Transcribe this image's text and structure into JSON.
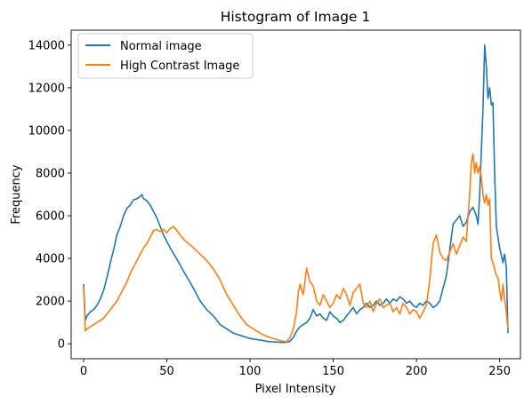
{
  "chart_data": {
    "type": "line",
    "title": "Histogram of Image 1",
    "xlabel": "Pixel Intensity",
    "ylabel": "Frequency",
    "xlim": [
      -7.5,
      262.5
    ],
    "ylim": [
      -700,
      14700
    ],
    "xticks": [
      0,
      50,
      100,
      150,
      200,
      250
    ],
    "yticks": [
      0,
      2000,
      4000,
      6000,
      8000,
      10000,
      12000,
      14000
    ],
    "grid": false,
    "legend_position": "upper-left",
    "series": [
      {
        "name": "Normal image",
        "color": "#1f77b4",
        "x": [
          0,
          1,
          2,
          4,
          6,
          8,
          10,
          12,
          14,
          16,
          18,
          20,
          22,
          24,
          26,
          28,
          30,
          32,
          34,
          35,
          36,
          38,
          40,
          42,
          44,
          46,
          48,
          50,
          52,
          55,
          58,
          60,
          63,
          66,
          70,
          74,
          78,
          82,
          86,
          90,
          94,
          98,
          100,
          104,
          108,
          110,
          112,
          114,
          116,
          118,
          120,
          122,
          124,
          126,
          128,
          130,
          132,
          134,
          136,
          138,
          140,
          142,
          144,
          146,
          148,
          150,
          152,
          154,
          156,
          158,
          160,
          162,
          164,
          166,
          168,
          170,
          172,
          174,
          176,
          178,
          180,
          182,
          184,
          186,
          188,
          190,
          192,
          194,
          196,
          198,
          200,
          202,
          204,
          206,
          208,
          210,
          212,
          214,
          216,
          218,
          220,
          222,
          224,
          226,
          228,
          230,
          232,
          234,
          236,
          237,
          238,
          239,
          240,
          241,
          242,
          243,
          244,
          245,
          246,
          247,
          248,
          250,
          252,
          253,
          254,
          255
        ],
        "y": [
          2800,
          1100,
          1300,
          1500,
          1600,
          1800,
          2100,
          2500,
          3100,
          3800,
          4400,
          5100,
          5500,
          6000,
          6350,
          6500,
          6750,
          6800,
          6900,
          7000,
          6800,
          6700,
          6500,
          6200,
          5900,
          5500,
          5100,
          4800,
          4500,
          4100,
          3700,
          3400,
          3000,
          2600,
          2000,
          1600,
          1300,
          900,
          700,
          500,
          400,
          300,
          250,
          200,
          150,
          120,
          100,
          90,
          80,
          70,
          60,
          80,
          120,
          300,
          600,
          800,
          900,
          1000,
          1200,
          1600,
          1300,
          1400,
          1200,
          1100,
          1500,
          1300,
          1200,
          1000,
          1100,
          1300,
          1500,
          1700,
          1400,
          1600,
          1700,
          1900,
          1700,
          1800,
          2000,
          1800,
          1900,
          2100,
          1900,
          2100,
          2000,
          2200,
          2100,
          1900,
          2000,
          1800,
          1700,
          1900,
          1800,
          2000,
          1900,
          1700,
          1800,
          2000,
          2600,
          3200,
          4400,
          5600,
          5800,
          6000,
          5500,
          5700,
          6200,
          6400,
          6000,
          5600,
          7000,
          9000,
          11000,
          14000,
          13000,
          11500,
          12000,
          11200,
          11300,
          8000,
          5500,
          4500,
          3800,
          4200,
          3600,
          500
        ]
      },
      {
        "name": "High Contrast Image",
        "color": "#ff7f0e",
        "x": [
          0,
          1,
          2,
          4,
          6,
          8,
          10,
          12,
          14,
          16,
          18,
          20,
          22,
          24,
          26,
          28,
          30,
          32,
          34,
          36,
          38,
          40,
          42,
          44,
          46,
          48,
          50,
          52,
          54,
          56,
          58,
          60,
          63,
          66,
          70,
          74,
          78,
          82,
          86,
          90,
          94,
          98,
          102,
          106,
          110,
          112,
          114,
          116,
          118,
          120,
          122,
          124,
          126,
          128,
          129,
          130,
          132,
          134,
          136,
          138,
          140,
          142,
          144,
          146,
          148,
          150,
          152,
          154,
          156,
          158,
          160,
          162,
          164,
          166,
          168,
          170,
          172,
          174,
          176,
          178,
          180,
          182,
          184,
          186,
          188,
          190,
          192,
          194,
          196,
          198,
          200,
          202,
          204,
          206,
          208,
          210,
          212,
          214,
          216,
          218,
          220,
          222,
          224,
          226,
          228,
          230,
          231,
          232,
          233,
          234,
          235,
          236,
          237,
          238,
          239,
          240,
          241,
          242,
          243,
          244,
          245,
          246,
          247,
          248,
          249,
          250,
          251,
          252,
          253,
          254,
          255
        ],
        "y": [
          2700,
          600,
          700,
          800,
          900,
          1000,
          1100,
          1200,
          1400,
          1600,
          1800,
          2000,
          2300,
          2600,
          2900,
          3300,
          3600,
          3900,
          4200,
          4500,
          4700,
          5000,
          5300,
          5350,
          5250,
          5350,
          5200,
          5400,
          5500,
          5300,
          5100,
          4900,
          4700,
          4500,
          4200,
          3900,
          3500,
          3000,
          2300,
          1800,
          1300,
          900,
          700,
          500,
          350,
          300,
          250,
          200,
          150,
          120,
          100,
          300,
          700,
          1500,
          2400,
          2800,
          2300,
          3550,
          2900,
          2700,
          2000,
          1800,
          2300,
          2000,
          1700,
          1900,
          2300,
          2100,
          2600,
          2300,
          1800,
          2400,
          2600,
          2800,
          1900,
          1700,
          2000,
          1500,
          1900,
          2100,
          1700,
          1800,
          1900,
          1500,
          1700,
          1400,
          1900,
          1700,
          1400,
          1600,
          1500,
          1200,
          1500,
          1800,
          3000,
          4700,
          5100,
          4300,
          4000,
          3900,
          4300,
          4700,
          4200,
          4600,
          5000,
          4800,
          6000,
          7000,
          8500,
          8900,
          8000,
          8500,
          8000,
          8300,
          7800,
          7000,
          6600,
          7000,
          6500,
          6800,
          4000,
          3800,
          3500,
          3200,
          3100,
          2500,
          2000,
          2800,
          2100,
          1500,
          700
        ]
      }
    ]
  }
}
